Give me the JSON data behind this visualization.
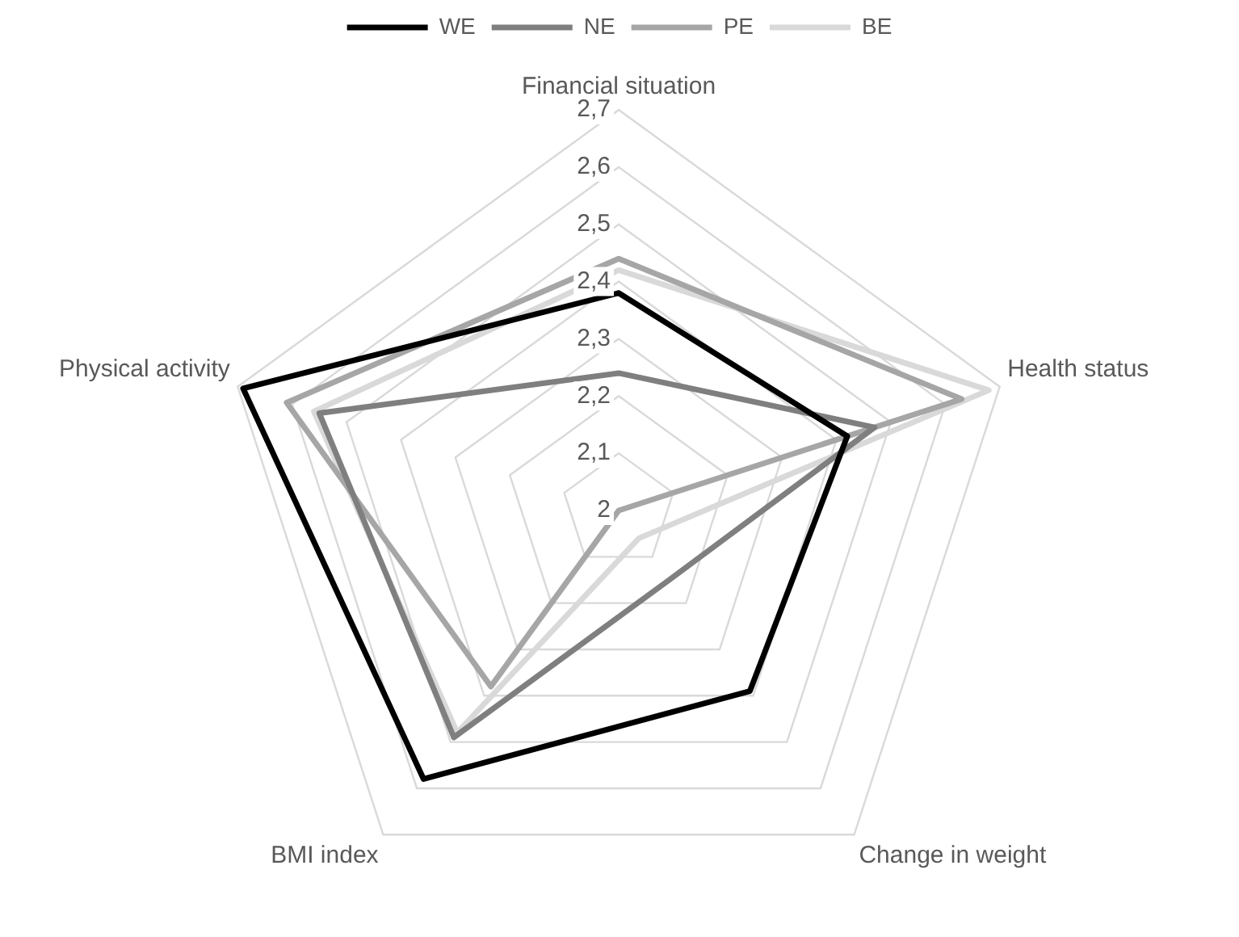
{
  "chart_data": {
    "type": "radar",
    "categories": [
      "Financial situation",
      "Health status",
      "Change in weight",
      "BMI index",
      "Physical activity"
    ],
    "series": [
      {
        "name": "WE",
        "color": "#000000",
        "values": [
          2.38,
          2.42,
          2.39,
          2.58,
          2.69
        ]
      },
      {
        "name": "NE",
        "color": "#7f7f7f",
        "values": [
          2.24,
          2.47,
          2.15,
          2.49,
          2.55
        ]
      },
      {
        "name": "PE",
        "color": "#a6a6a6",
        "values": [
          2.44,
          2.63,
          2.0,
          2.38,
          2.61
        ]
      },
      {
        "name": "BE",
        "color": "#d9d9d9",
        "values": [
          2.42,
          2.68,
          2.06,
          2.48,
          2.56
        ]
      }
    ],
    "ylim": [
      2,
      2.7
    ],
    "yticks": [
      {
        "value": 2,
        "label": "2"
      },
      {
        "value": 2.1,
        "label": "2,1"
      },
      {
        "value": 2.2,
        "label": "2,2"
      },
      {
        "value": 2.3,
        "label": "2,3"
      },
      {
        "value": 2.4,
        "label": "2,4"
      },
      {
        "value": 2.5,
        "label": "2,5"
      },
      {
        "value": 2.6,
        "label": "2,6"
      },
      {
        "value": 2.7,
        "label": "2,7"
      }
    ],
    "grid": true,
    "legend": "top",
    "marker": "none",
    "line_style": "solid"
  }
}
